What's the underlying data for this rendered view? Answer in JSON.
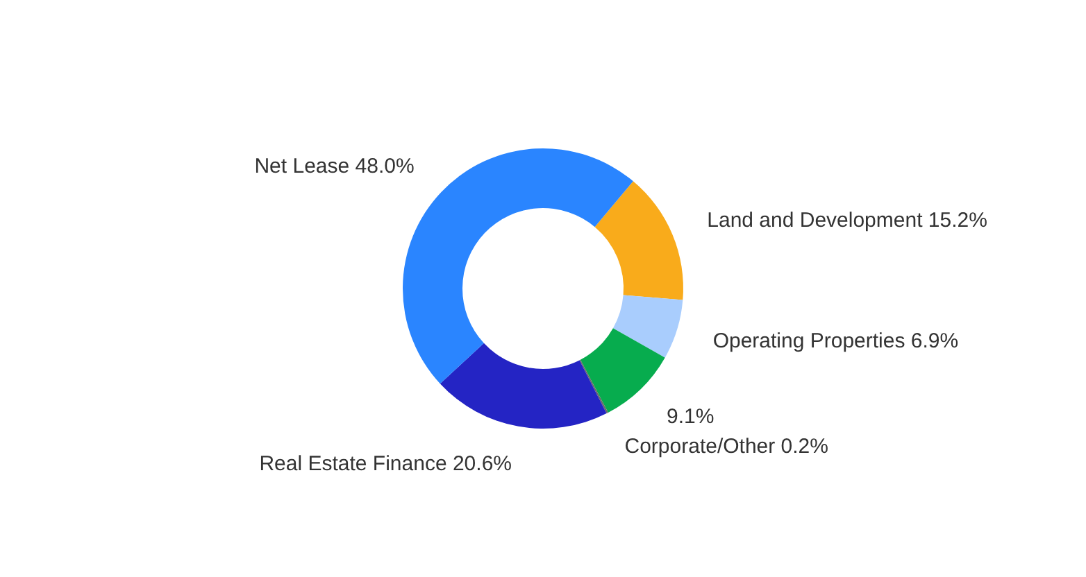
{
  "chart_data": {
    "type": "donut",
    "categories": [
      "Land and Development",
      "Operating Properties",
      null,
      "Corporate/Other",
      "Real Estate Finance",
      "Net Lease"
    ],
    "values": [
      15.2,
      6.9,
      9.1,
      0.2,
      20.6,
      48.0
    ],
    "value_labels": [
      "15.2%",
      "6.9%",
      "9.1%",
      "0.2%",
      "20.6%",
      "48.0%"
    ],
    "colors": [
      "#f9ab1b",
      "#a9cdfd",
      "#07ac4e",
      "#6a6a6a",
      "#2424c4",
      "#2a85ff"
    ]
  }
}
